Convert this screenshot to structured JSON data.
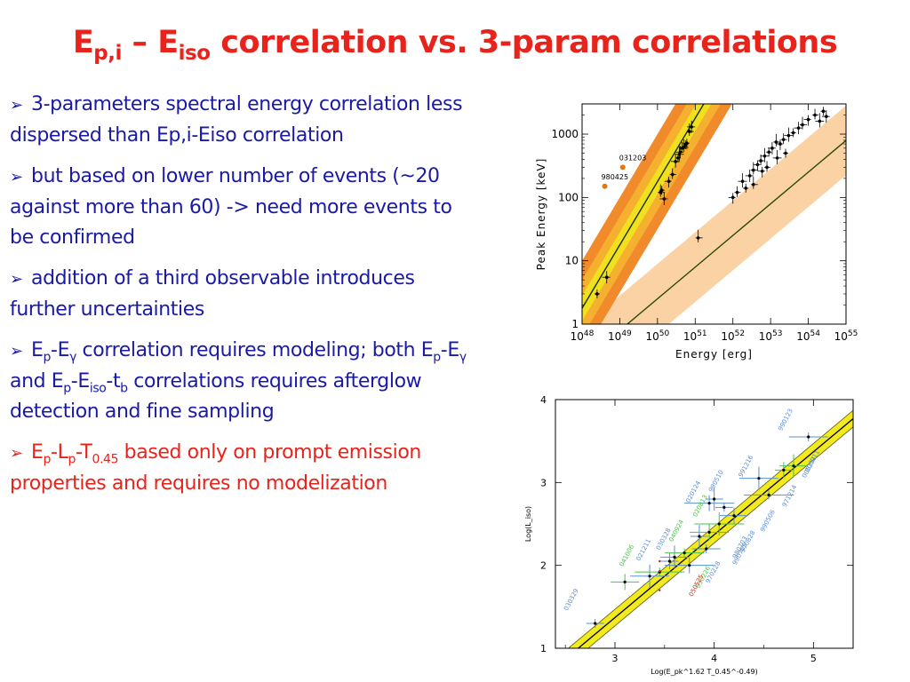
{
  "slide": {
    "title": {
      "E1": "E",
      "sub1": "p,i",
      "dash": " – E",
      "sub2": "iso",
      "rest": "  correlation vs. 3-param correlations"
    },
    "bullets": [
      {
        "segments": [
          {
            "t": "3-parameters spectral energy correlation less dispersed than Ep,i-Eiso correlation"
          }
        ],
        "color": "#1a1aa6"
      },
      {
        "segments": [
          {
            "t": "but based on lower number of events (~20 against more than 60) -> need more events to be confirmed"
          }
        ],
        "color": "#1a1aa6"
      },
      {
        "segments": [
          {
            "t": "addition of a third observable introduces further uncertainties"
          }
        ],
        "color": "#1a1aa6"
      },
      {
        "segments": [
          {
            "t": "E"
          },
          {
            "sub": "p"
          },
          {
            "t": "-E"
          },
          {
            "sub": "γ"
          },
          {
            "t": " correlation requires modeling; both E"
          },
          {
            "sub": "p"
          },
          {
            "t": "-E"
          },
          {
            "sub": "γ"
          },
          {
            "t": " and E"
          },
          {
            "sub": "p"
          },
          {
            "t": "-E"
          },
          {
            "sub": "iso"
          },
          {
            "t": "-t"
          },
          {
            "sub": "b"
          },
          {
            "t": " correlations requires afterglow detection and fine sampling"
          }
        ],
        "color": "#1a1aa6"
      },
      {
        "segments": [
          {
            "t": "E"
          },
          {
            "sub": "p"
          },
          {
            "t": "-L"
          },
          {
            "sub": "p"
          },
          {
            "t": "-T"
          },
          {
            "sub": "0.45"
          },
          {
            "t": " based only on prompt emission properties and requires no modelization"
          }
        ],
        "color": "#e8231b"
      }
    ]
  },
  "chart_data": [
    {
      "type": "scatter",
      "title": "",
      "xlabel": "Energy [erg]",
      "ylabel": "Peak Energy [keV]",
      "xscale": "log",
      "yscale": "log",
      "xlim": [
        1e+48,
        1e+55
      ],
      "ylim": [
        1,
        3000
      ],
      "xticks": [
        "10^48",
        "10^49",
        "10^50",
        "10^51",
        "10^52",
        "10^53",
        "10^54",
        "10^55"
      ],
      "yticks": [
        "1",
        "10",
        "100",
        "1000"
      ],
      "annotations": [
        {
          "label": "980425",
          "x": 4e+48,
          "y": 150,
          "color": "#e07a10"
        },
        {
          "label": "031203",
          "x": 1.2e+49,
          "y": 300,
          "color": "#e07a10"
        }
      ],
      "series": [
        {
          "name": "",
          "bands": "orange",
          "points": [
            [
              1.3e+50,
              130
            ],
            [
              1.5e+50,
              95
            ],
            [
              1.2e+50,
              120
            ],
            [
              2e+50,
              180
            ],
            [
              2.5e+50,
              230
            ],
            [
              3e+50,
              370
            ],
            [
              3.5e+50,
              420
            ],
            [
              4e+50,
              520
            ],
            [
              5e+50,
              620
            ],
            [
              6e+50,
              720
            ],
            [
              4.5e+50,
              600
            ],
            [
              3.8e+50,
              480
            ],
            [
              5.5e+50,
              680
            ],
            [
              8e+50,
              1300
            ],
            [
              7e+50,
              1100
            ]
          ]
        },
        {
          "name": "",
          "bands": "light",
          "points": [
            [
              2.5e+48,
              3.0
            ],
            [
              4.5e+48,
              5.5
            ],
            [
              1.2e+51,
              23
            ],
            [
              1e+52,
              100
            ],
            [
              1.3e+52,
              120
            ],
            [
              1.8e+52,
              180
            ],
            [
              2.2e+52,
              140
            ],
            [
              2.8e+52,
              220
            ],
            [
              3.5e+52,
              270
            ],
            [
              4.5e+52,
              330
            ],
            [
              5.5e+52,
              380
            ],
            [
              7e+52,
              450
            ],
            [
              9e+52,
              520
            ],
            [
              1.1e+53,
              600
            ],
            [
              1.4e+53,
              750
            ],
            [
              1.8e+53,
              700
            ],
            [
              2.2e+53,
              820
            ],
            [
              3e+53,
              950
            ],
            [
              4e+53,
              1050
            ],
            [
              5.5e+53,
              1250
            ],
            [
              7e+53,
              1400
            ],
            [
              1e+54,
              1700
            ],
            [
              1.5e+54,
              2000
            ],
            [
              2e+54,
              1600
            ],
            [
              2.5e+54,
              2300
            ],
            [
              3e+54,
              1900
            ],
            [
              3.5e+52,
              160
            ],
            [
              6e+52,
              260
            ],
            [
              8e+52,
              300
            ],
            [
              1.5e+53,
              420
            ],
            [
              2.5e+53,
              500
            ]
          ]
        }
      ]
    },
    {
      "type": "scatter",
      "title": "",
      "xlabel": "Log(E_pk^1.62 T_0.45^-0.49)",
      "ylabel": "Log(L_iso)",
      "xlim": [
        2.4,
        5.4
      ],
      "ylim": [
        1,
        4
      ],
      "xticks": [
        "3",
        "4",
        "5"
      ],
      "yticks": [
        "1",
        "2",
        "3",
        "4"
      ],
      "labels": [
        {
          "t": "990123",
          "c": "#5a8fd6"
        },
        {
          "t": "991216",
          "c": "#5a8fd6"
        },
        {
          "t": "990510",
          "c": "#5a8fd6"
        },
        {
          "t": "020124",
          "c": "#5a8fd6"
        },
        {
          "t": "020813",
          "c": "#4cc24c"
        },
        {
          "t": "000911",
          "c": "#5a8fd6"
        },
        {
          "t": "000131",
          "c": "#5a8fd6"
        },
        {
          "t": "971214",
          "c": "#5a8fd6"
        },
        {
          "t": "040924",
          "c": "#4cc24c"
        },
        {
          "t": "030328",
          "c": "#5a8fd6"
        },
        {
          "t": "021211",
          "c": "#5a8fd6"
        },
        {
          "t": "041006",
          "c": "#4cc24c"
        },
        {
          "t": "990506",
          "c": "#5a8fd6"
        },
        {
          "t": "970828",
          "c": "#5a8fd6"
        },
        {
          "t": "980703",
          "c": "#5a8fd6"
        },
        {
          "t": "990705",
          "c": "#5a8fd6"
        },
        {
          "t": "970228",
          "c": "#5a8fd6"
        },
        {
          "t": "030226",
          "c": "#4cc24c"
        },
        {
          "t": "050525",
          "c": "#e8231b"
        },
        {
          "t": "030329",
          "c": "#5a8fd6"
        }
      ],
      "points": [
        [
          2.8,
          1.3
        ],
        [
          3.1,
          1.8
        ],
        [
          3.35,
          1.87
        ],
        [
          3.45,
          1.92
        ],
        [
          3.55,
          2.05
        ],
        [
          3.6,
          2.1
        ],
        [
          3.7,
          2.15
        ],
        [
          3.75,
          2.0
        ],
        [
          3.85,
          2.35
        ],
        [
          3.92,
          2.2
        ],
        [
          3.95,
          2.4
        ],
        [
          4.05,
          2.5
        ],
        [
          4.1,
          2.7
        ],
        [
          4.2,
          2.6
        ],
        [
          4.45,
          3.05
        ],
        [
          4.55,
          2.85
        ],
        [
          4.7,
          3.15
        ],
        [
          4.8,
          3.2
        ],
        [
          4.95,
          3.55
        ],
        [
          3.95,
          2.75
        ],
        [
          4.0,
          2.8
        ]
      ]
    }
  ]
}
